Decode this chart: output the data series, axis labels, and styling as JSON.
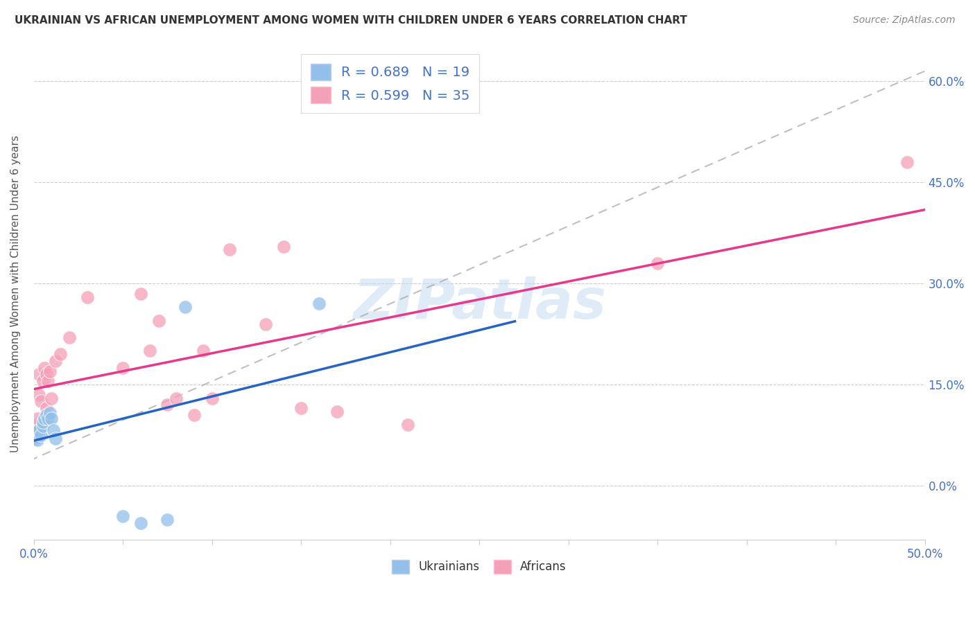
{
  "title": "UKRAINIAN VS AFRICAN UNEMPLOYMENT AMONG WOMEN WITH CHILDREN UNDER 6 YEARS CORRELATION CHART",
  "source": "Source: ZipAtlas.com",
  "ylabel": "Unemployment Among Women with Children Under 6 years",
  "xlabel": "",
  "xlim": [
    0.0,
    0.5
  ],
  "ylim": [
    -0.08,
    0.65
  ],
  "ytick_positions": [
    0.0,
    0.15,
    0.3,
    0.45,
    0.6
  ],
  "ytick_labels": [
    "0.0%",
    "15.0%",
    "30.0%",
    "45.0%",
    "60.0%"
  ],
  "xtick_positions": [
    0.0,
    0.05,
    0.1,
    0.15,
    0.2,
    0.25,
    0.3,
    0.35,
    0.4,
    0.45,
    0.5
  ],
  "xtick_labels": [
    "0.0%",
    "",
    "",
    "",
    "",
    "",
    "",
    "",
    "",
    "",
    "50.0%"
  ],
  "r_ukrainian": 0.689,
  "n_ukrainian": 19,
  "r_african": 0.599,
  "n_african": 35,
  "ukrainian_color": "#92C0EA",
  "african_color": "#F4A0B8",
  "ukrainian_line_color": "#2563C4",
  "african_line_color": "#E8388C",
  "dashed_line_color": "#AAAAAA",
  "watermark": "ZIPatlas",
  "legend_color": "#2563C4",
  "ukrainians_x": [
    0.0,
    0.001,
    0.002,
    0.003,
    0.004,
    0.005,
    0.005,
    0.006,
    0.007,
    0.008,
    0.009,
    0.01,
    0.011,
    0.012,
    0.05,
    0.06,
    0.075,
    0.085,
    0.16
  ],
  "ukrainians_y": [
    0.078,
    0.07,
    0.068,
    0.082,
    0.075,
    0.088,
    0.095,
    0.1,
    0.105,
    0.1,
    0.108,
    0.1,
    0.082,
    0.07,
    -0.045,
    -0.055,
    -0.05,
    0.265,
    0.27
  ],
  "africans_x": [
    0.0,
    0.001,
    0.002,
    0.003,
    0.003,
    0.004,
    0.005,
    0.005,
    0.006,
    0.007,
    0.007,
    0.008,
    0.009,
    0.01,
    0.012,
    0.015,
    0.02,
    0.03,
    0.05,
    0.06,
    0.065,
    0.07,
    0.075,
    0.08,
    0.09,
    0.095,
    0.1,
    0.11,
    0.13,
    0.14,
    0.15,
    0.17,
    0.21,
    0.35,
    0.49
  ],
  "africans_y": [
    0.08,
    0.09,
    0.1,
    0.135,
    0.165,
    0.125,
    0.09,
    0.155,
    0.175,
    0.115,
    0.165,
    0.155,
    0.17,
    0.13,
    0.185,
    0.195,
    0.22,
    0.28,
    0.175,
    0.285,
    0.2,
    0.245,
    0.12,
    0.13,
    0.105,
    0.2,
    0.13,
    0.35,
    0.24,
    0.355,
    0.115,
    0.11,
    0.09,
    0.33,
    0.48
  ],
  "ukr_slope": 1.05,
  "ukr_intercept": 0.06,
  "afr_slope": 0.88,
  "afr_intercept": 0.08,
  "dash_slope": 1.15,
  "dash_intercept": 0.04
}
